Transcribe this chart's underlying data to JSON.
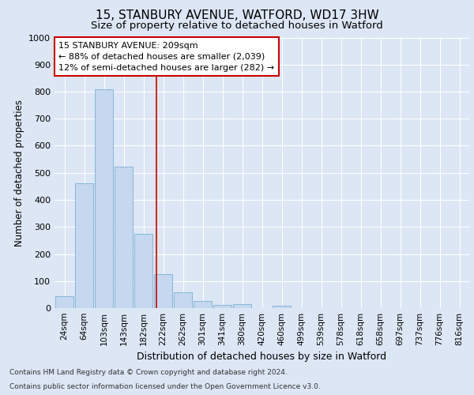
{
  "title": "15, STANBURY AVENUE, WATFORD, WD17 3HW",
  "subtitle": "Size of property relative to detached houses in Watford",
  "xlabel": "Distribution of detached houses by size in Watford",
  "ylabel": "Number of detached properties",
  "footer_line1": "Contains HM Land Registry data © Crown copyright and database right 2024.",
  "footer_line2": "Contains public sector information licensed under the Open Government Licence v3.0.",
  "bin_labels": [
    "24sqm",
    "64sqm",
    "103sqm",
    "143sqm",
    "182sqm",
    "222sqm",
    "262sqm",
    "301sqm",
    "341sqm",
    "380sqm",
    "420sqm",
    "460sqm",
    "499sqm",
    "539sqm",
    "578sqm",
    "618sqm",
    "658sqm",
    "697sqm",
    "737sqm",
    "776sqm",
    "816sqm"
  ],
  "bar_values": [
    45,
    462,
    810,
    522,
    273,
    125,
    58,
    25,
    12,
    14,
    0,
    10,
    0,
    0,
    0,
    0,
    0,
    0,
    0,
    0,
    0
  ],
  "bar_color": "#c5d8ef",
  "bar_edge_color": "#7aafd4",
  "annotation_box_text": "15 STANBURY AVENUE: 209sqm\n← 88% of detached houses are smaller (2,039)\n12% of semi-detached houses are larger (282) →",
  "annotation_box_color": "#ffffff",
  "annotation_box_edge_color": "#cc0000",
  "annotation_line_color": "#cc0000",
  "ylim": [
    0,
    1000
  ],
  "bg_color": "#dce6f5",
  "plot_bg_color": "#dce6f5",
  "grid_color": "#ffffff",
  "title_fontsize": 11,
  "subtitle_fontsize": 9.5,
  "tick_fontsize": 7.5,
  "ylabel_fontsize": 8.5,
  "xlabel_fontsize": 9,
  "footer_fontsize": 6.5
}
